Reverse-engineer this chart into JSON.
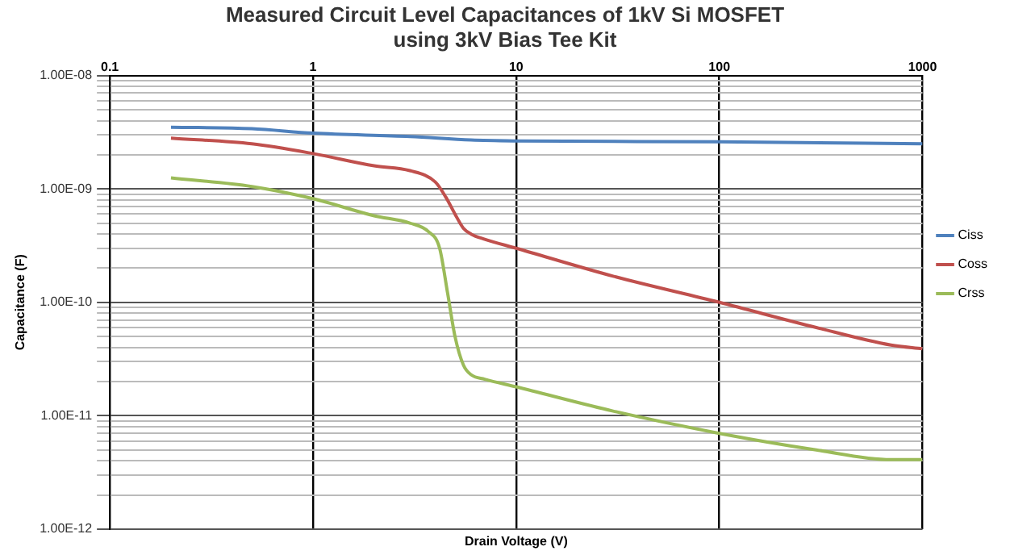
{
  "chart_data": {
    "type": "line",
    "title": "Measured Circuit Level Capacitances of 1kV Si MOSFET\nusing 3kV Bias Tee Kit",
    "xlabel": "Drain Voltage (V)",
    "ylabel": "Capacitance (F)",
    "log": "xy",
    "grid": true,
    "legend": "right",
    "marker": "none",
    "line_style": "solid",
    "xlim": [
      0.1,
      1000
    ],
    "xticks": [
      0.1,
      1,
      10,
      100,
      1000
    ],
    "ylim": [
      1e-12,
      1e-08
    ],
    "yticks": [
      {
        "value": 1e-12,
        "label": "1.00E-12"
      },
      {
        "value": 2e-12,
        "label": null
      },
      {
        "value": 3e-12,
        "label": null
      },
      {
        "value": 4e-12,
        "label": null
      },
      {
        "value": 5e-12,
        "label": null
      },
      {
        "value": 6e-12,
        "label": null
      },
      {
        "value": 7e-12,
        "label": null
      },
      {
        "value": 8e-12,
        "label": null
      },
      {
        "value": 9e-12,
        "label": null
      },
      {
        "value": 1e-11,
        "label": "1.00E-11"
      },
      {
        "value": 2e-11,
        "label": null
      },
      {
        "value": 3e-11,
        "label": null
      },
      {
        "value": 4e-11,
        "label": null
      },
      {
        "value": 5e-11,
        "label": null
      },
      {
        "value": 6e-11,
        "label": null
      },
      {
        "value": 7e-11,
        "label": null
      },
      {
        "value": 8e-11,
        "label": null
      },
      {
        "value": 9e-11,
        "label": null
      },
      {
        "value": 1e-10,
        "label": "1.00E-10"
      },
      {
        "value": 2e-10,
        "label": null
      },
      {
        "value": 3e-10,
        "label": null
      },
      {
        "value": 4e-10,
        "label": null
      },
      {
        "value": 5e-10,
        "label": null
      },
      {
        "value": 6e-10,
        "label": null
      },
      {
        "value": 7e-10,
        "label": null
      },
      {
        "value": 8e-10,
        "label": null
      },
      {
        "value": 9e-10,
        "label": null
      },
      {
        "value": 1e-09,
        "label": "1.00E-09"
      },
      {
        "value": 2e-09,
        "label": null
      },
      {
        "value": 3e-09,
        "label": null
      },
      {
        "value": 4e-09,
        "label": null
      },
      {
        "value": 5e-09,
        "label": null
      },
      {
        "value": 6e-09,
        "label": null
      },
      {
        "value": 7e-09,
        "label": null
      },
      {
        "value": 8e-09,
        "label": null
      },
      {
        "value": 9e-09,
        "label": null
      },
      {
        "value": 1e-08,
        "label": "1.00E-08"
      }
    ],
    "series": [
      {
        "name": "Ciss",
        "color": "#4f81bd",
        "x": [
          0.2,
          0.5,
          1,
          3,
          6,
          10,
          100,
          1000
        ],
        "values": [
          3.5e-09,
          3.4e-09,
          3.1e-09,
          2.9e-09,
          2.7e-09,
          2.65e-09,
          2.6e-09,
          2.5e-09
        ]
      },
      {
        "name": "Coss",
        "color": "#c0504d",
        "x": [
          0.2,
          0.5,
          1,
          2,
          3,
          4,
          4.5,
          5,
          5.5,
          6,
          7,
          10,
          30,
          100,
          300,
          700,
          1000
        ],
        "values": [
          2.8e-09,
          2.5e-09,
          2.05e-09,
          1.6e-09,
          1.45e-09,
          1.15e-09,
          8.5e-10,
          6e-10,
          4.5e-10,
          4e-10,
          3.6e-10,
          3e-10,
          1.7e-10,
          1e-10,
          6e-11,
          4.2e-11,
          3.9e-11
        ]
      },
      {
        "name": "Crss",
        "color": "#9bbb59",
        "x": [
          0.2,
          0.5,
          1,
          2,
          3,
          3.7,
          4.2,
          4.6,
          5,
          5.5,
          6,
          7,
          10,
          30,
          100,
          300,
          700,
          1000
        ],
        "values": [
          1.25e-09,
          1.05e-09,
          8.2e-10,
          5.8e-10,
          5e-10,
          4.2e-10,
          3e-10,
          1.2e-10,
          5e-11,
          2.8e-11,
          2.3e-11,
          2.1e-11,
          1.8e-11,
          1.1e-11,
          7e-12,
          5e-12,
          4.1e-12,
          4.1e-12
        ]
      }
    ]
  }
}
